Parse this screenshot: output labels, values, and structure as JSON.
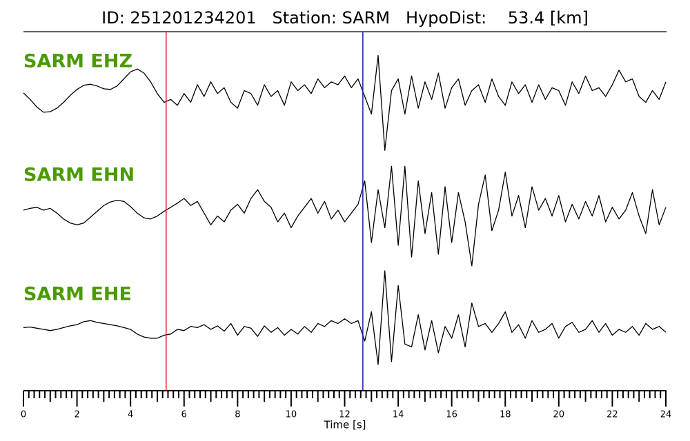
{
  "chart_data": {
    "type": "line",
    "title": "ID: 251201234201   Station: SARM   HypoDist:    53.4 [km]",
    "xlabel": "Time [s]",
    "xlim": [
      0,
      24
    ],
    "xticks": [
      0,
      2,
      4,
      6,
      8,
      10,
      12,
      14,
      16,
      18,
      20,
      22,
      24
    ],
    "xminorticks": [
      0.2,
      0.4,
      0.6,
      0.8,
      1,
      1.2,
      1.4,
      1.6,
      1.8,
      2.2,
      2.4,
      2.6,
      2.8,
      3,
      3.2,
      3.4,
      3.6,
      3.8,
      4.2,
      4.4,
      4.6,
      4.8,
      5,
      5.2,
      5.4,
      5.6,
      5.8,
      6.2,
      6.4,
      6.6,
      6.8,
      7,
      7.2,
      7.4,
      7.6,
      7.8,
      8.2,
      8.4,
      8.6,
      8.8,
      9,
      9.2,
      9.4,
      9.6,
      9.8,
      10.2,
      10.4,
      10.6,
      10.8,
      11,
      11.2,
      11.4,
      11.6,
      11.8,
      12.2,
      12.4,
      12.6,
      12.8,
      13,
      13.2,
      13.4,
      13.6,
      13.8,
      14.2,
      14.4,
      14.6,
      14.8,
      15,
      15.2,
      15.4,
      15.6,
      15.8,
      16.2,
      16.4,
      16.6,
      16.8,
      17,
      17.2,
      17.4,
      17.6,
      17.8,
      18.2,
      18.4,
      18.6,
      18.8,
      19,
      19.2,
      19.4,
      19.6,
      19.8,
      20.2,
      20.4,
      20.6,
      20.8,
      21,
      21.2,
      21.4,
      21.6,
      21.8,
      22.2,
      22.4,
      22.6,
      22.8,
      23,
      23.2,
      23.4,
      23.6,
      23.8
    ],
    "ylim": [
      -1,
      1
    ],
    "label_color": "#4a9a00",
    "picks": [
      {
        "x": 5.33,
        "color": "#e8141a"
      },
      {
        "x": 12.68,
        "color": "#1a1ab4"
      }
    ],
    "x": [
      0,
      0.25,
      0.5,
      0.75,
      1,
      1.25,
      1.5,
      1.75,
      2,
      2.25,
      2.5,
      2.75,
      3,
      3.25,
      3.5,
      3.75,
      4,
      4.25,
      4.5,
      4.75,
      5,
      5.25,
      5.5,
      5.75,
      6,
      6.25,
      6.5,
      6.75,
      7,
      7.25,
      7.5,
      7.75,
      8,
      8.25,
      8.5,
      8.75,
      9,
      9.25,
      9.5,
      9.75,
      10,
      10.25,
      10.5,
      10.75,
      11,
      11.25,
      11.5,
      11.75,
      12,
      12.25,
      12.5,
      12.75,
      13,
      13.25,
      13.5,
      13.75,
      14,
      14.25,
      14.5,
      14.75,
      15,
      15.25,
      15.5,
      15.75,
      16,
      16.25,
      16.5,
      16.75,
      17,
      17.25,
      17.5,
      17.75,
      18,
      18.25,
      18.5,
      18.75,
      19,
      19.25,
      19.5,
      19.75,
      20,
      20.25,
      20.5,
      20.75,
      21,
      21.25,
      21.5,
      21.75,
      22,
      22.25,
      22.5,
      22.75,
      23,
      23.25,
      23.5,
      23.75,
      24
    ],
    "series": [
      {
        "name": "SARM EHZ",
        "color": "#000000",
        "values": [
          0.06,
          -0.05,
          -0.18,
          -0.27,
          -0.26,
          -0.2,
          -0.1,
          0.02,
          0.12,
          0.19,
          0.21,
          0.18,
          0.13,
          0.12,
          0.18,
          0.3,
          0.42,
          0.47,
          0.4,
          0.25,
          0.05,
          -0.1,
          -0.05,
          -0.15,
          0.05,
          -0.1,
          0.2,
          0,
          0.25,
          0.05,
          0.15,
          -0.1,
          -0.2,
          0.1,
          0.05,
          -0.15,
          0.2,
          0,
          0.1,
          -0.15,
          0.25,
          0.1,
          0.2,
          0.05,
          0.3,
          0.15,
          0.25,
          0.2,
          0.35,
          0.15,
          0.3,
          0,
          -0.3,
          0.7,
          -0.92,
          0.1,
          0.3,
          -0.3,
          0.35,
          -0.2,
          0.25,
          -0.05,
          0.4,
          -0.2,
          0.15,
          0.3,
          -0.15,
          0.1,
          0.2,
          -0.1,
          0.3,
          0,
          -0.15,
          0.25,
          0.05,
          0.2,
          -0.1,
          0.2,
          -0.05,
          0.15,
          0.1,
          -0.15,
          0.25,
          0.05,
          0.35,
          0.1,
          0.15,
          0,
          0.2,
          0.45,
          0.25,
          0.3,
          0,
          -0.1,
          0.1,
          -0.05,
          0.25
        ]
      },
      {
        "name": "SARM EHN",
        "color": "#000000",
        "values": [
          0,
          0.03,
          0.05,
          0,
          0.03,
          -0.05,
          -0.15,
          -0.22,
          -0.25,
          -0.22,
          -0.12,
          -0.02,
          0.08,
          0.14,
          0.17,
          0.15,
          0.06,
          -0.05,
          -0.13,
          -0.15,
          -0.1,
          -0.02,
          0.05,
          0.12,
          0.2,
          0.08,
          0.15,
          -0.05,
          -0.25,
          -0.1,
          -0.2,
          0,
          0.1,
          -0.05,
          0.2,
          0.35,
          0.15,
          0.05,
          -0.2,
          -0.05,
          -0.3,
          -0.1,
          0.05,
          0.2,
          -0.05,
          0.15,
          -0.15,
          0,
          -0.2,
          -0.05,
          0.1,
          0.5,
          -0.55,
          0.35,
          -0.3,
          0.75,
          -0.6,
          0.75,
          -0.8,
          0.5,
          -0.4,
          0.3,
          -0.75,
          0.4,
          -0.55,
          0.3,
          -0.2,
          -0.95,
          0.1,
          0.6,
          -0.35,
          0,
          0.65,
          -0.1,
          0.25,
          -0.3,
          0.4,
          0,
          0.2,
          -0.1,
          0.25,
          -0.2,
          0.1,
          -0.15,
          0.15,
          -0.1,
          0.25,
          -0.2,
          0.05,
          -0.15,
          0,
          0.3,
          -0.1,
          -0.4,
          0.35,
          -0.25,
          0.05
        ]
      },
      {
        "name": "SARM EHE",
        "color": "#000000",
        "values": [
          0.03,
          0.04,
          0.02,
          0,
          -0.02,
          0,
          0.03,
          0.06,
          0.08,
          0.13,
          0.15,
          0.12,
          0.1,
          0.08,
          0.06,
          0.03,
          0,
          -0.08,
          -0.13,
          -0.15,
          -0.15,
          -0.1,
          -0.08,
          0,
          -0.02,
          0.05,
          0.03,
          0.08,
          0,
          0.06,
          -0.03,
          0.1,
          -0.1,
          0.05,
          0.02,
          -0.12,
          0.06,
          -0.05,
          0.03,
          -0.1,
          0,
          -0.08,
          0.05,
          -0.05,
          0.1,
          0.05,
          0.15,
          0.1,
          0.18,
          0.1,
          0.15,
          -0.2,
          0.3,
          -0.6,
          1,
          -0.55,
          0.75,
          -0.25,
          -0.3,
          0.25,
          -0.35,
          0.15,
          -0.4,
          0.05,
          -0.15,
          0.25,
          -0.3,
          0.45,
          0.05,
          0.1,
          -0.05,
          0.1,
          0.3,
          -0.05,
          0.08,
          -0.15,
          0.15,
          -0.05,
          0,
          0.1,
          -0.15,
          0.05,
          0.12,
          -0.05,
          0,
          0.15,
          -0.05,
          0.1,
          -0.1,
          0,
          -0.05,
          0.05,
          -0.1,
          0.1,
          0,
          0.05,
          -0.05
        ]
      }
    ]
  }
}
